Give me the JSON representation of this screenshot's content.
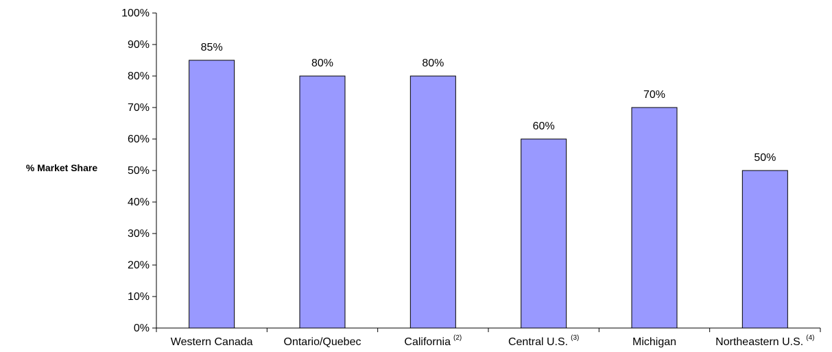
{
  "chart_data": {
    "type": "bar",
    "title": "",
    "xlabel": "",
    "ylabel": "% Market Share",
    "categories": [
      {
        "label": "Western Canada",
        "note": ""
      },
      {
        "label": "Ontario/Quebec",
        "note": ""
      },
      {
        "label": "California",
        "note": "(2)"
      },
      {
        "label": "Central U.S.",
        "note": "(3)"
      },
      {
        "label": "Michigan",
        "note": ""
      },
      {
        "label": "Northeastern U.S.",
        "note": "(4)"
      }
    ],
    "values": [
      85,
      80,
      80,
      60,
      70,
      50
    ],
    "value_labels": [
      "85%",
      "80%",
      "80%",
      "60%",
      "70%",
      "50%"
    ],
    "ylim": [
      0,
      100
    ],
    "yticks": [
      "0%",
      "10%",
      "20%",
      "30%",
      "40%",
      "50%",
      "60%",
      "70%",
      "80%",
      "90%",
      "100%"
    ],
    "grid": false,
    "legend": "none",
    "colors": {
      "bar_fill": "#9999FF",
      "bar_stroke": "#000000",
      "axis": "#000000"
    }
  }
}
